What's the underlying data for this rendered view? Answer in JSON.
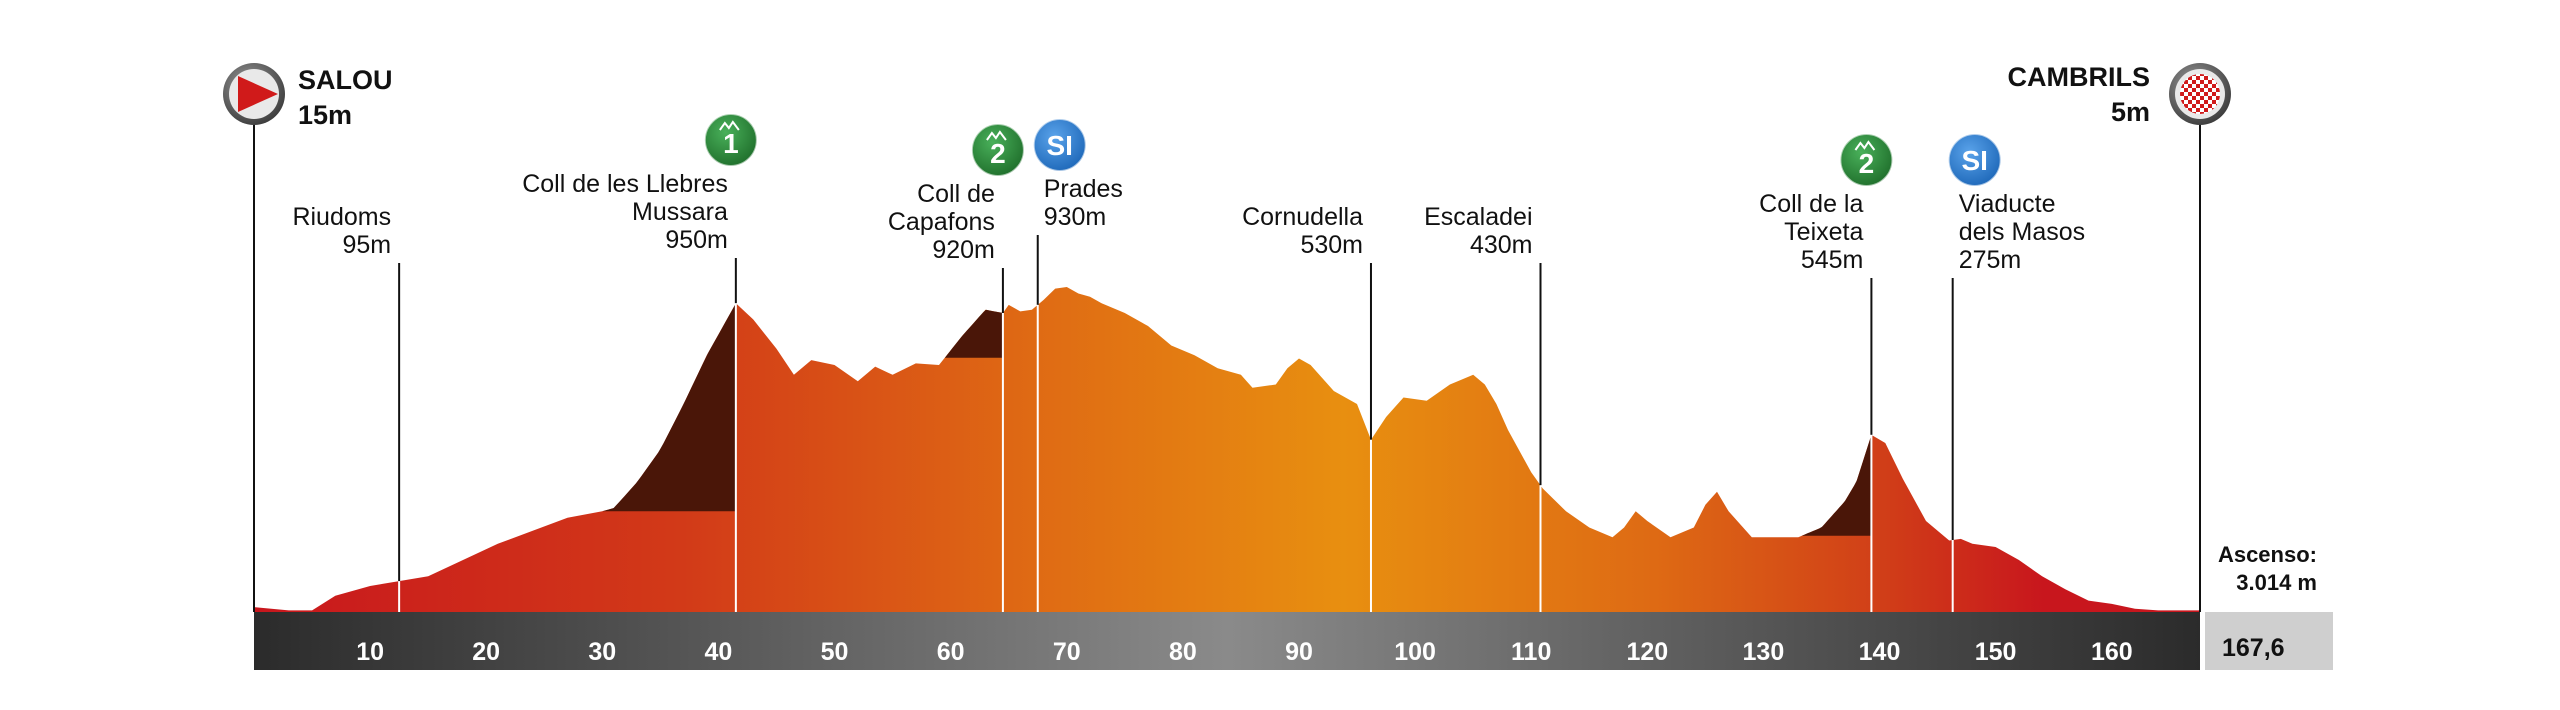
{
  "start": {
    "name": "SALOU",
    "altitude": "15m"
  },
  "finish": {
    "name": "CAMBRILS",
    "altitude": "5m"
  },
  "ascent": {
    "label": "Ascenso:",
    "value": "3.014 m"
  },
  "total_distance": "167,6",
  "colors": {
    "profile_light": "#e8900e",
    "profile_mid": "#d85417",
    "profile_red": "#c8161d",
    "climb_fill": "#4a1608",
    "axis_dark": "#2b2b2b",
    "axis_light": "#8a8a8a",
    "kom_green": "#2e8a3b",
    "sprint_blue": "#2f7fd0",
    "start_red": "#d01a1a"
  },
  "points": [
    {
      "name_lines": [
        "Riudoms"
      ],
      "altitude": "95m",
      "km": 12.5,
      "type": "town"
    },
    {
      "name_lines": [
        "Coll de les Llebres",
        "Mussara"
      ],
      "altitude": "950m",
      "km": 41.5,
      "type": "kom",
      "category": "1"
    },
    {
      "name_lines": [
        "Coll de",
        "Capafons"
      ],
      "altitude": "920m",
      "km": 64.5,
      "type": "kom",
      "category": "2"
    },
    {
      "name_lines": [
        "Prades"
      ],
      "altitude": "930m",
      "km": 67.5,
      "type": "sprint",
      "badge": "SI"
    },
    {
      "name_lines": [
        "Cornudella"
      ],
      "altitude": "530m",
      "km": 96.2,
      "type": "town"
    },
    {
      "name_lines": [
        "Escaladei"
      ],
      "altitude": "430m",
      "km": 110.8,
      "type": "town"
    },
    {
      "name_lines": [
        "Coll de la",
        "Teixeta"
      ],
      "altitude": "545m",
      "km": 139.3,
      "type": "kom",
      "category": "2"
    },
    {
      "name_lines": [
        "Viaducte",
        "dels Masos"
      ],
      "altitude": "275m",
      "km": 146.3,
      "type": "sprint",
      "badge": "SI"
    }
  ],
  "chart_data": {
    "type": "area",
    "x_unit": "km",
    "x": [
      0,
      3,
      5,
      7,
      10,
      12.5,
      15,
      18,
      21,
      24,
      27,
      30,
      31,
      33,
      35,
      37,
      39,
      41.5,
      43,
      45,
      46.5,
      48,
      50,
      52,
      53.5,
      55,
      57,
      59,
      61,
      63,
      64.5,
      65,
      66,
      67,
      68,
      69,
      70,
      71,
      72,
      73,
      75,
      77,
      79,
      81,
      83,
      85,
      86,
      88,
      89,
      90,
      91,
      93,
      95,
      96.2,
      97.5,
      99,
      101,
      103,
      105,
      106,
      107,
      108,
      110,
      111,
      113,
      115,
      117,
      118,
      119,
      120,
      122,
      124,
      125,
      126,
      127,
      129,
      131,
      133,
      135,
      137,
      138,
      139.3,
      140.5,
      142,
      144,
      146,
      147,
      148,
      150,
      152,
      154,
      156,
      158,
      160,
      162,
      164,
      166,
      167.6
    ],
    "y": [
      15,
      5,
      5,
      50,
      80,
      95,
      110,
      160,
      210,
      250,
      290,
      310,
      320,
      400,
      500,
      640,
      790,
      950,
      900,
      810,
      730,
      775,
      760,
      710,
      755,
      730,
      765,
      760,
      850,
      930,
      920,
      945,
      925,
      930,
      960,
      995,
      1000,
      980,
      970,
      950,
      920,
      880,
      820,
      790,
      750,
      730,
      690,
      700,
      750,
      780,
      760,
      680,
      640,
      530,
      600,
      660,
      650,
      700,
      730,
      700,
      640,
      560,
      430,
      380,
      310,
      260,
      230,
      260,
      310,
      280,
      230,
      260,
      330,
      370,
      310,
      230,
      230,
      230,
      260,
      340,
      400,
      545,
      520,
      410,
      280,
      220,
      225,
      210,
      200,
      160,
      110,
      70,
      35,
      25,
      10,
      5,
      5,
      5
    ],
    "xlim": [
      0,
      167.6
    ],
    "ylim": [
      0,
      1200
    ],
    "x_ticks": [
      10,
      20,
      30,
      40,
      50,
      60,
      70,
      80,
      90,
      100,
      110,
      120,
      130,
      140,
      150,
      160
    ],
    "grid": false
  }
}
